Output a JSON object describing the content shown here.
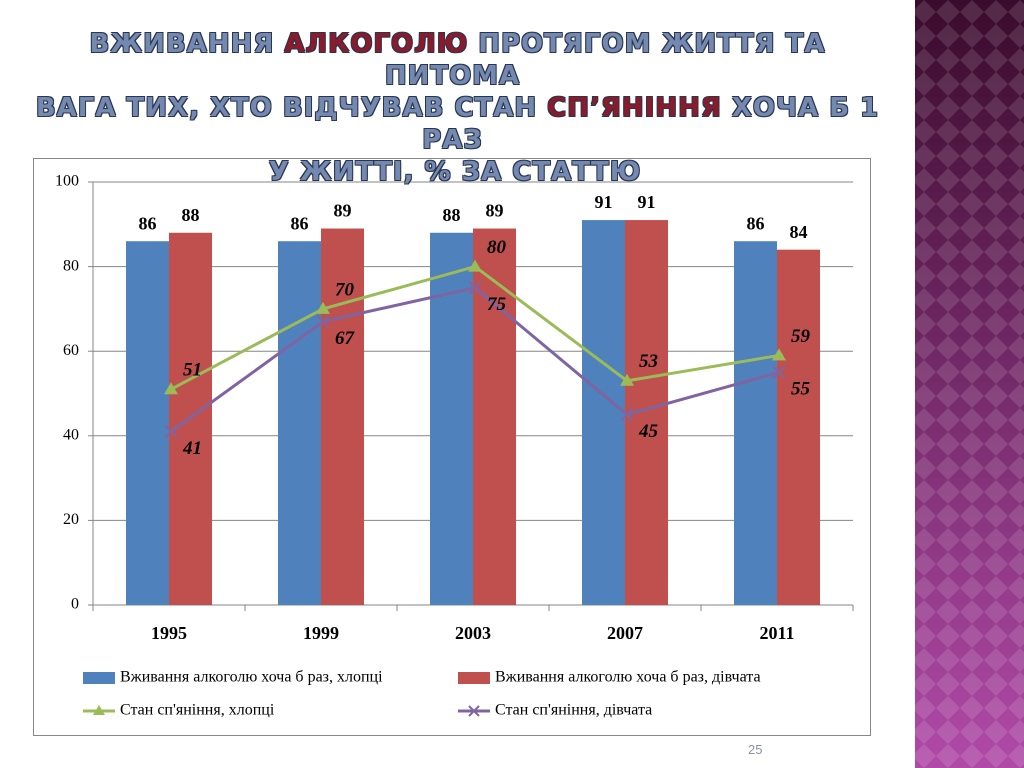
{
  "chart_data": {
    "type": "bar",
    "title": [
      [
        {
          "text": "ВЖИВАННЯ",
          "color": "#7489b0"
        },
        {
          "text": "АЛКОГОЛЮ",
          "color": "#8b1a2a"
        },
        {
          "text": "ПРОТЯГОМ ЖИТТЯ ТА ПИТОМА",
          "color": "#7489b0"
        }
      ],
      [
        {
          "text": "ВАГА ТИХ, ХТО ВІДЧУВАВ СТАН",
          "color": "#7489b0"
        },
        {
          "text": "СП’ЯНІННЯ",
          "color": "#8b1a2a"
        },
        {
          "text": "ХОЧА Б 1 РАЗ",
          "color": "#7489b0"
        }
      ],
      [
        {
          "text": "У ЖИТТІ, % ЗА СТАТТЮ",
          "color": "#7489b0"
        }
      ]
    ],
    "categories": [
      "1995",
      "1999",
      "2003",
      "2007",
      "2011"
    ],
    "series": [
      {
        "name": "Вживання алкоголю хоча б раз, хлопці",
        "kind": "bar",
        "color": "#4f81bd",
        "values": [
          86,
          86,
          88,
          91,
          86
        ]
      },
      {
        "name": "Вживання алкоголю хоча б раз, дівчата",
        "kind": "bar",
        "color": "#c0504d",
        "values": [
          88,
          89,
          89,
          91,
          84
        ]
      },
      {
        "name": "Стан сп'яніння, хлопці",
        "kind": "line",
        "marker": "triangle",
        "color": "#9bbb59",
        "values": [
          51,
          70,
          80,
          53,
          59
        ]
      },
      {
        "name": "Стан сп'яніння, дівчата",
        "kind": "line",
        "marker": "x",
        "color": "#8064a2",
        "values": [
          41,
          67,
          75,
          45,
          55
        ]
      }
    ],
    "ylim": [
      0,
      100
    ],
    "yticks": [
      0,
      20,
      40,
      60,
      80,
      100
    ],
    "grid": true,
    "page_number": "25"
  }
}
